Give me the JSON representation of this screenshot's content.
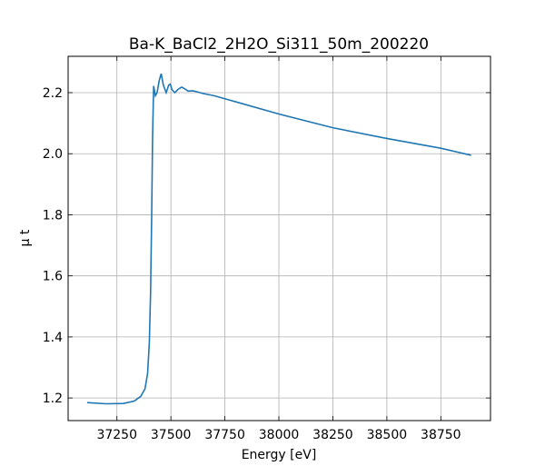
{
  "chart_data": {
    "type": "line",
    "title": "Ba-K_BaCl2_2H2O_Si311_50m_200220",
    "x_label": "Energy [eV]",
    "y_label": "μ t",
    "xlim": [
      37024,
      38980
    ],
    "ylim": [
      1.126,
      2.319
    ],
    "xticks": [
      37250,
      37500,
      37750,
      38000,
      38250,
      38500,
      38750
    ],
    "yticks": [
      1.2,
      1.4,
      1.6,
      1.8,
      {
        "value": 2,
        "label": "2.0"
      },
      2.2
    ],
    "grid": true,
    "series": [
      {
        "color": "#1f77b4",
        "x": [
          37112,
          37200,
          37280,
          37330,
          37360,
          37380,
          37392,
          37400,
          37406,
          37411,
          37415,
          37420,
          37428,
          37436,
          37446,
          37455,
          37465,
          37478,
          37490,
          37497,
          37505,
          37518,
          37535,
          37550,
          37565,
          37580,
          37600,
          37620,
          37650,
          37700,
          37800,
          38000,
          38250,
          38500,
          38750,
          38890
        ],
        "values": [
          1.185,
          1.181,
          1.182,
          1.19,
          1.205,
          1.23,
          1.28,
          1.38,
          1.55,
          1.8,
          2.05,
          2.222,
          2.19,
          2.2,
          2.24,
          2.262,
          2.225,
          2.2,
          2.225,
          2.228,
          2.21,
          2.2,
          2.212,
          2.218,
          2.212,
          2.205,
          2.206,
          2.203,
          2.197,
          2.19,
          2.17,
          2.13,
          2.085,
          2.05,
          2.018,
          1.995
        ]
      }
    ]
  }
}
